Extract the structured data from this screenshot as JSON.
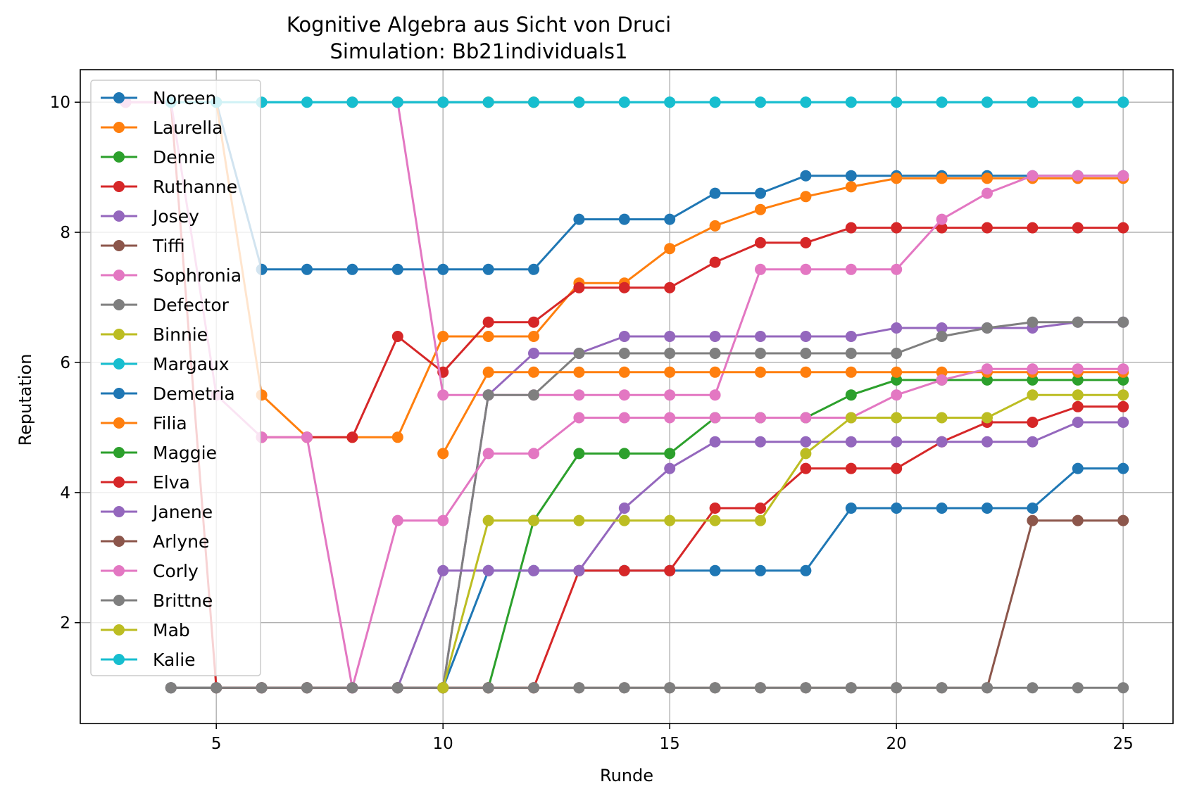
{
  "chart_data": {
    "type": "line",
    "title": "Kognitive Algebra aus Sicht von Druci",
    "subtitle": "Simulation: Bb21individuals1",
    "xlabel": "Runde",
    "ylabel": "Reputation",
    "xlim": [
      2,
      26.1
    ],
    "ylim": [
      0.45,
      10.5
    ],
    "xticks": [
      5,
      10,
      15,
      20,
      25
    ],
    "yticks": [
      2,
      4,
      6,
      8,
      10
    ],
    "grid": true,
    "legend_position": "upper-left",
    "series": [
      {
        "name": "Noreen",
        "color": "#1f77b4",
        "x": [
          5,
          6,
          7,
          8,
          9,
          10,
          11,
          12,
          13,
          14,
          15,
          16,
          17,
          18,
          19,
          20,
          21,
          22,
          23,
          24,
          25
        ],
        "y": [
          10,
          7.43,
          7.43,
          7.43,
          7.43,
          7.43,
          7.43,
          7.43,
          8.2,
          8.2,
          8.2,
          8.6,
          8.6,
          8.87,
          8.87,
          8.87,
          8.87,
          8.87,
          8.87,
          8.87,
          8.87
        ]
      },
      {
        "name": "Laurella",
        "color": "#ff7f0e",
        "x": [
          5,
          6,
          7,
          8,
          9,
          10,
          11,
          12,
          13,
          14,
          15,
          16,
          17,
          18,
          19,
          20,
          21,
          22,
          23,
          24,
          25
        ],
        "y": [
          10,
          5.5,
          4.85,
          4.85,
          4.85,
          6.4,
          6.4,
          6.4,
          7.22,
          7.22,
          7.75,
          8.1,
          8.35,
          8.55,
          8.7,
          8.83,
          8.83,
          8.83,
          8.83,
          8.83,
          8.83
        ]
      },
      {
        "name": "Dennie",
        "color": "#2ca02c",
        "x": [
          11,
          12,
          13,
          14,
          15,
          16,
          17,
          18,
          19,
          20,
          21,
          22,
          23,
          24,
          25
        ],
        "y": [
          1,
          3.57,
          4.6,
          4.6,
          4.6,
          5.15,
          5.15,
          5.15,
          5.5,
          5.73,
          5.73,
          5.73,
          5.73,
          5.73,
          5.73
        ]
      },
      {
        "name": "Ruthanne",
        "color": "#d62728",
        "x": [
          6,
          7,
          8,
          9,
          10,
          11,
          12,
          13,
          14,
          15,
          16,
          17,
          18,
          19,
          20,
          21,
          22,
          23,
          24,
          25
        ],
        "y": [
          4.85,
          4.85,
          4.85,
          6.4,
          5.85,
          6.62,
          6.62,
          7.15,
          7.15,
          7.15,
          7.54,
          7.84,
          7.84,
          8.07,
          8.07,
          8.07,
          8.07,
          8.07,
          8.07,
          8.07
        ]
      },
      {
        "name": "Josey",
        "color": "#9467bd",
        "x": [
          10,
          11,
          12,
          13,
          14,
          15,
          16,
          17,
          18,
          19,
          20,
          21,
          22,
          23,
          24,
          25
        ],
        "y": [
          1,
          5.5,
          6.14,
          6.14,
          6.4,
          6.4,
          6.4,
          6.4,
          6.4,
          6.4,
          6.53,
          6.53,
          6.53,
          6.53,
          6.62,
          6.62
        ]
      },
      {
        "name": "Tiffi",
        "color": "#8c564b",
        "x": [
          8,
          9,
          10,
          11,
          12,
          13
        ],
        "y": [
          10,
          10,
          10,
          10,
          10,
          10
        ]
      },
      {
        "name": "Sophronia",
        "color": "#e377c2",
        "x": [
          9,
          10,
          11,
          12,
          13,
          14,
          15,
          16,
          17,
          18,
          19,
          20,
          21,
          22,
          23,
          24,
          25
        ],
        "y": [
          10,
          5.5,
          5.5,
          5.5,
          5.5,
          5.5,
          5.5,
          5.5,
          7.43,
          7.43,
          7.43,
          7.43,
          8.2,
          8.6,
          8.87,
          8.87,
          8.87
        ]
      },
      {
        "name": "Defector",
        "color": "#7f7f7f",
        "x": [
          10,
          11,
          12,
          13,
          14,
          15,
          16,
          17,
          18,
          19,
          20,
          21,
          22,
          23,
          24,
          25
        ],
        "y": [
          1,
          5.5,
          5.5,
          6.14,
          6.14,
          6.14,
          6.14,
          6.14,
          6.14,
          6.14,
          6.14,
          6.4,
          6.53,
          6.62,
          6.62,
          6.62
        ]
      },
      {
        "name": "Binnie",
        "color": "#bcbd22",
        "x": [
          11,
          12,
          13
        ],
        "y": [
          10,
          10,
          10
        ]
      },
      {
        "name": "Margaux",
        "color": "#17becf",
        "x": [
          6,
          7,
          8,
          9,
          10,
          11,
          12,
          13,
          14,
          15,
          16,
          17,
          18,
          19,
          20,
          21,
          22,
          23,
          24,
          25
        ],
        "y": [
          10,
          10,
          10,
          10,
          10,
          10,
          10,
          10,
          10,
          10,
          10,
          10,
          10,
          10,
          10,
          10,
          10,
          10,
          10,
          10
        ]
      },
      {
        "name": "Demetria",
        "color": "#1f77b4",
        "x": [
          4,
          5,
          6,
          7,
          8,
          9,
          10,
          11,
          12,
          13,
          14,
          15,
          16,
          17,
          18,
          19,
          20,
          21,
          22,
          23,
          24,
          25
        ],
        "y": [
          1,
          1,
          1,
          1,
          1,
          1,
          1,
          2.8,
          2.8,
          2.8,
          2.8,
          2.8,
          2.8,
          2.8,
          2.8,
          3.76,
          3.76,
          3.76,
          3.76,
          3.76,
          4.37,
          4.37
        ]
      },
      {
        "name": "Filia",
        "color": "#ff7f0e",
        "x": [
          10,
          11,
          12,
          13,
          14,
          15,
          16,
          17,
          18,
          19,
          20,
          21,
          22,
          23,
          24,
          25
        ],
        "y": [
          4.6,
          5.85,
          5.85,
          5.85,
          5.85,
          5.85,
          5.85,
          5.85,
          5.85,
          5.85,
          5.85,
          5.85,
          5.85,
          5.85,
          5.85,
          5.85
        ]
      },
      {
        "name": "Maggie",
        "color": "#2ca02c",
        "x": [],
        "y": []
      },
      {
        "name": "Elva",
        "color": "#d62728",
        "x": [
          3,
          4,
          5,
          6,
          7,
          8,
          9,
          10,
          11,
          12,
          13,
          14,
          15,
          16,
          17,
          18,
          19,
          20,
          21,
          22,
          23,
          24,
          25
        ],
        "y": [
          10,
          10,
          1,
          1,
          1,
          1,
          1,
          1,
          1,
          1,
          2.8,
          2.8,
          2.8,
          3.76,
          3.76,
          4.37,
          4.37,
          4.37,
          4.78,
          5.08,
          5.08,
          5.32,
          5.32
        ]
      },
      {
        "name": "Janene",
        "color": "#9467bd",
        "x": [
          8,
          9,
          10,
          11,
          12,
          13,
          14,
          15,
          16,
          17,
          18,
          19,
          20,
          21,
          22,
          23,
          24,
          25
        ],
        "y": [
          1,
          1,
          2.8,
          2.8,
          2.8,
          2.8,
          3.76,
          4.37,
          4.78,
          4.78,
          4.78,
          4.78,
          4.78,
          4.78,
          4.78,
          4.78,
          5.08,
          5.08
        ]
      },
      {
        "name": "Arlyne",
        "color": "#8c564b",
        "x": [
          4,
          5,
          6,
          7,
          8,
          9,
          10,
          11,
          12,
          13,
          14,
          15,
          16,
          17,
          18,
          19,
          20,
          21,
          22,
          23,
          24,
          25
        ],
        "y": [
          1,
          1,
          1,
          1,
          1,
          1,
          1,
          1,
          1,
          1,
          1,
          1,
          1,
          1,
          1,
          1,
          1,
          1,
          1,
          3.57,
          3.57,
          3.57
        ]
      },
      {
        "name": "Corly",
        "color": "#e377c2",
        "x": [
          3,
          4,
          5,
          6,
          7,
          8,
          9,
          10,
          11,
          12,
          13,
          14,
          15,
          16,
          17,
          18,
          19,
          20,
          21,
          22,
          23,
          24,
          25
        ],
        "y": [
          10,
          10,
          5.5,
          4.85,
          4.85,
          1,
          3.57,
          3.57,
          4.6,
          4.6,
          5.15,
          5.15,
          5.15,
          5.15,
          5.15,
          5.15,
          5.15,
          5.5,
          5.73,
          5.9,
          5.9,
          5.9,
          5.9
        ]
      },
      {
        "name": "Brittne",
        "color": "#7f7f7f",
        "x": [
          4,
          5,
          6,
          7,
          8,
          9,
          10,
          11,
          12,
          13,
          14,
          15,
          16,
          17,
          18,
          19,
          20,
          21,
          22,
          23,
          24,
          25
        ],
        "y": [
          1,
          1,
          1,
          1,
          1,
          1,
          1,
          1,
          1,
          1,
          1,
          1,
          1,
          1,
          1,
          1,
          1,
          1,
          1,
          1,
          1,
          1
        ]
      },
      {
        "name": "Mab",
        "color": "#bcbd22",
        "x": [
          10,
          11,
          12,
          13,
          14,
          15,
          16,
          17,
          18,
          19,
          20,
          21,
          22,
          23,
          24,
          25
        ],
        "y": [
          1,
          3.57,
          3.57,
          3.57,
          3.57,
          3.57,
          3.57,
          3.57,
          4.6,
          5.15,
          5.15,
          5.15,
          5.15,
          5.5,
          5.5,
          5.5
        ]
      },
      {
        "name": "Kalie",
        "color": "#17becf",
        "x": [
          4,
          5,
          13,
          14,
          15,
          16,
          17,
          18,
          19,
          20,
          21,
          22,
          23,
          24,
          25
        ],
        "y": [
          10,
          10,
          10,
          10,
          10,
          10,
          10,
          10,
          10,
          10,
          10,
          10,
          10,
          10,
          10
        ]
      }
    ]
  }
}
